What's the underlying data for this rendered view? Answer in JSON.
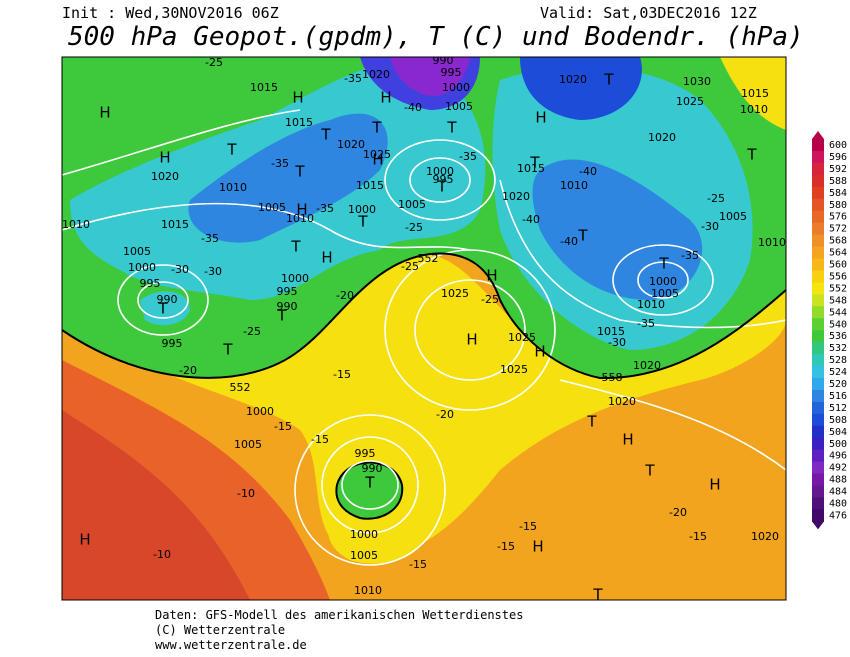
{
  "header": {
    "init": "Init : Wed,30NOV2016 06Z",
    "valid": "Valid: Sat,03DEC2016 12Z",
    "title": "500 hPa Geopot.(gpdm), T (C) und Bodendr. (hPa)"
  },
  "legend": {
    "labels": [
      600,
      596,
      592,
      588,
      584,
      580,
      576,
      572,
      568,
      564,
      560,
      556,
      552,
      548,
      544,
      540,
      536,
      532,
      528,
      524,
      520,
      516,
      512,
      508,
      504,
      500,
      496,
      492,
      488,
      484,
      480,
      476
    ]
  },
  "footer": {
    "lines": [
      "Daten: GFS-Modell des amerikanischen Wetterdienstes",
      "(C) Wetterzentrale",
      "www.wetterzentrale.de"
    ]
  },
  "map": {
    "labels": [
      "H",
      "H",
      "1020",
      "1015",
      "1010",
      "1005",
      "1000",
      "995",
      "T",
      "990",
      "-30",
      "-30",
      "H",
      "T",
      "T",
      "995",
      "-25",
      "T",
      "990",
      "995",
      "1000",
      "-20",
      "-20",
      "552",
      "1000",
      "-15",
      "1005",
      "-15",
      "-10",
      "-10",
      "H",
      "995",
      "990",
      "T",
      "1000",
      "1005",
      "1010",
      "-15",
      "-15",
      "T",
      "H",
      "-15",
      "-15",
      "-20",
      "H",
      "1020",
      "T",
      "H",
      "T",
      "1020",
      "558",
      "1025",
      "H",
      "1025",
      "H",
      "1025",
      "-25",
      "H",
      "552",
      "-25",
      "-15",
      "-20",
      "1020",
      "1015",
      "-30",
      "-35",
      "T",
      "1000",
      "1005",
      "1010",
      "-35",
      "-30",
      "1005",
      "-25",
      "1010",
      "T",
      "1020",
      "1025",
      "1030",
      "1010",
      "1015",
      "1020",
      "T",
      "H",
      "1015",
      "1010",
      "-40",
      "1020",
      "-40",
      "-40",
      "T",
      "T",
      "-35",
      "T",
      "1000",
      "995",
      "T",
      "1005",
      "995",
      "1000",
      "990",
      "-40",
      "T",
      "1020",
      "1025",
      "H",
      "1015",
      "1010",
      "1000",
      "T",
      "1005",
      "-25",
      "-35",
      "1020",
      "H",
      "-35",
      "T",
      "H",
      "T",
      "1015",
      "1015",
      "T",
      "1010",
      "-35",
      "1005",
      "H",
      "-25",
      "-35"
    ]
  }
}
